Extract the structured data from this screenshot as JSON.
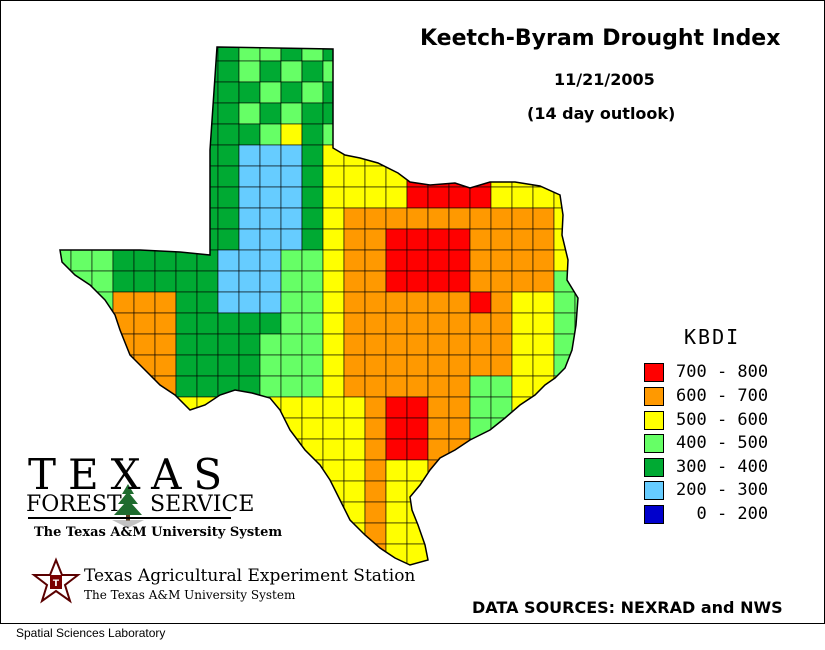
{
  "header": {
    "title": "Keetch-Byram Drought Index",
    "date": "11/21/2005",
    "subtitle": "(14 day outlook)"
  },
  "legend": {
    "title": "KBDI",
    "items": [
      {
        "range": "700 - 800",
        "color": "#ff0000"
      },
      {
        "range": "600 - 700",
        "color": "#ff9900"
      },
      {
        "range": "500 - 600",
        "color": "#ffff00"
      },
      {
        "range": "400 - 500",
        "color": "#66ff66"
      },
      {
        "range": "300 - 400",
        "color": "#00aa33"
      },
      {
        "range": "200 - 300",
        "color": "#66ccff"
      },
      {
        "range": "  0 - 200",
        "color": "#0000cc"
      }
    ]
  },
  "logos": {
    "tfs_big": "TEXAS",
    "tfs_forest": "FOREST",
    "tfs_service": "SERVICE",
    "tfs_sub": "The Texas A&M University System",
    "taes_name": "Texas Agricultural Experiment Station",
    "taes_sub": "The Texas A&M University System"
  },
  "data_sources": "DATA SOURCES: NEXRAD and NWS",
  "footer": "Spatial Sciences Laboratory",
  "map": {
    "region": "Texas",
    "colors": {
      "r": "#ff0000",
      "o": "#ff9900",
      "y": "#ffff00",
      "l": "#66ff66",
      "g": "#00aa33",
      "b": "#66ccff"
    }
  }
}
